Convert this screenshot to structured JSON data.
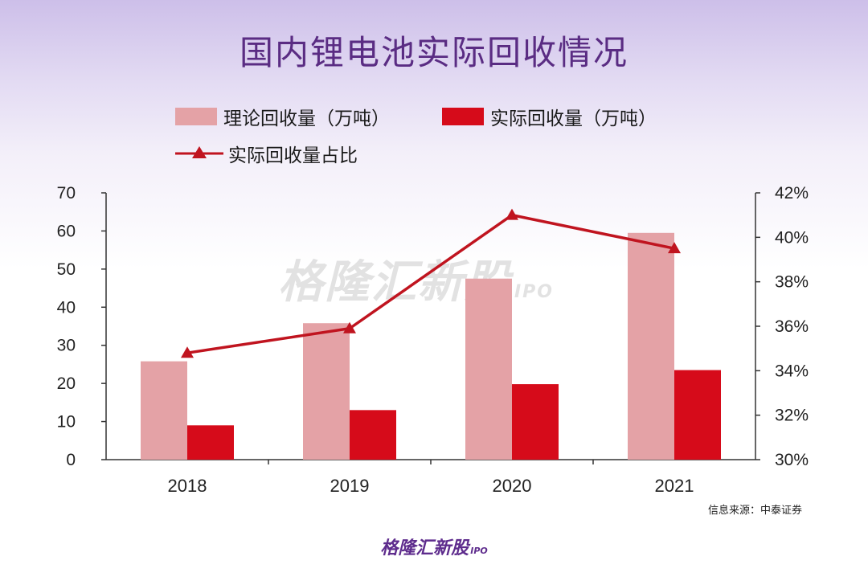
{
  "title": "国内锂电池实际回收情况",
  "source": "信息来源：中泰证券",
  "brand": {
    "main": "格隆汇新股",
    "sub": "IPO"
  },
  "watermark": {
    "main": "格隆汇新股",
    "sub": "IPO"
  },
  "colors": {
    "theory_bar": "#e4a2a6",
    "actual_bar": "#d60b1a",
    "ratio_line": "#c0141f",
    "title": "#5a2c83"
  },
  "chart_data": {
    "type": "bar",
    "title": "国内锂电池实际回收情况",
    "categories": [
      "2018",
      "2019",
      "2020",
      "2021"
    ],
    "series": [
      {
        "name": "理论回收量（万吨）",
        "type": "bar",
        "axis": "left",
        "values": [
          25.8,
          35.8,
          47.5,
          59.5
        ]
      },
      {
        "name": "实际回收量（万吨）",
        "type": "bar",
        "axis": "left",
        "values": [
          9.0,
          13.0,
          19.8,
          23.5
        ]
      },
      {
        "name": "实际回收量占比",
        "type": "line",
        "axis": "right",
        "unit": "%",
        "values": [
          34.8,
          35.9,
          41.0,
          39.5
        ]
      }
    ],
    "y_left": {
      "lim": [
        0,
        70
      ],
      "ticks": [
        "0",
        "10",
        "20",
        "30",
        "40",
        "50",
        "60",
        "70"
      ]
    },
    "y_right": {
      "lim": [
        30,
        42
      ],
      "ticks": [
        "30%",
        "32%",
        "34%",
        "36%",
        "38%",
        "40%",
        "42%"
      ]
    },
    "grid": false,
    "legend_position": "top"
  }
}
